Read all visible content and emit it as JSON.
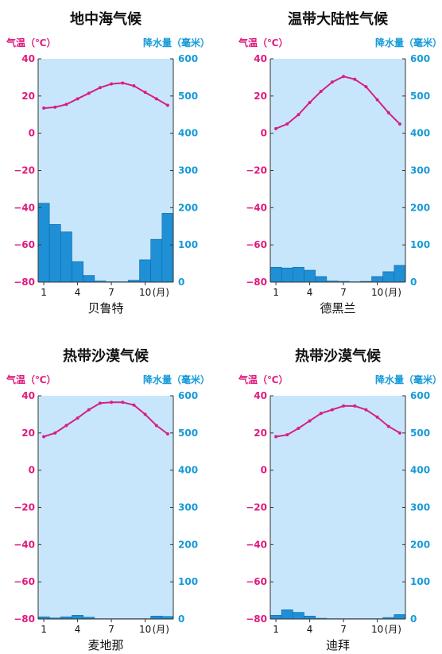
{
  "labels": {
    "temp_unit": "气温（℃）",
    "precip_unit": "降水量（毫米）",
    "month_suffix": "(月)"
  },
  "colors": {
    "temperature": "#d61f86",
    "precipitation": "#1f8fd6",
    "plot_background": "#c7e6fb"
  },
  "chart_data": [
    {
      "type": "bar",
      "title": "地中海气候",
      "city": "贝鲁特",
      "x": [
        1,
        2,
        3,
        4,
        5,
        6,
        7,
        8,
        9,
        10,
        11,
        12
      ],
      "x_tick_labels": [
        "1",
        "4",
        "7",
        "10"
      ],
      "temp_axis": {
        "ticks": [
          "40",
          "20",
          "0",
          "−20",
          "−40",
          "−60",
          "−80"
        ],
        "ylim": [
          -80,
          40
        ]
      },
      "precip_axis": {
        "ticks": [
          "600",
          "500",
          "400",
          "300",
          "200",
          "100",
          "0"
        ],
        "ylim": [
          0,
          600
        ]
      },
      "series": [
        {
          "name": "气温",
          "type": "line",
          "values": [
            13.5,
            14,
            15.5,
            18.5,
            21.5,
            24.5,
            26.5,
            27,
            25.5,
            22,
            18.5,
            15
          ]
        },
        {
          "name": "降水量",
          "type": "bar",
          "values": [
            212,
            155,
            135,
            55,
            18,
            3,
            1,
            1,
            5,
            60,
            115,
            185
          ]
        }
      ]
    },
    {
      "type": "bar",
      "title": "温带大陆性气候",
      "city": "德黑兰",
      "x": [
        1,
        2,
        3,
        4,
        5,
        6,
        7,
        8,
        9,
        10,
        11,
        12
      ],
      "x_tick_labels": [
        "1",
        "4",
        "7",
        "10"
      ],
      "temp_axis": {
        "ticks": [
          "40",
          "20",
          "0",
          "−20",
          "−40",
          "−60",
          "−80"
        ],
        "ylim": [
          -80,
          40
        ]
      },
      "precip_axis": {
        "ticks": [
          "600",
          "500",
          "400",
          "300",
          "200",
          "100",
          "0"
        ],
        "ylim": [
          0,
          600
        ]
      },
      "series": [
        {
          "name": "气温",
          "type": "line",
          "values": [
            2.5,
            5,
            10,
            16.5,
            22.5,
            27.5,
            30.5,
            29,
            25,
            18,
            11,
            5
          ]
        },
        {
          "name": "降水量",
          "type": "bar",
          "values": [
            40,
            38,
            40,
            32,
            15,
            3,
            2,
            1,
            2,
            15,
            28,
            45
          ]
        }
      ]
    },
    {
      "type": "bar",
      "title": "热带沙漠气候",
      "city": "麦地那",
      "x": [
        1,
        2,
        3,
        4,
        5,
        6,
        7,
        8,
        9,
        10,
        11,
        12
      ],
      "x_tick_labels": [
        "1",
        "4",
        "7",
        "10"
      ],
      "temp_axis": {
        "ticks": [
          "40",
          "20",
          "0",
          "−20",
          "−40",
          "−60",
          "−80"
        ],
        "ylim": [
          -80,
          40
        ]
      },
      "precip_axis": {
        "ticks": [
          "600",
          "500",
          "400",
          "300",
          "200",
          "100",
          "0"
        ],
        "ylim": [
          0,
          600
        ]
      },
      "series": [
        {
          "name": "气温",
          "type": "line",
          "values": [
            18,
            20,
            24,
            28,
            32.5,
            36,
            36.5,
            36.5,
            35,
            30,
            24,
            19.5
          ]
        },
        {
          "name": "降水量",
          "type": "bar",
          "values": [
            6,
            3,
            6,
            10,
            5,
            1,
            1,
            1,
            1,
            1,
            8,
            7
          ]
        }
      ]
    },
    {
      "type": "bar",
      "title": "热带沙漠气候",
      "city": "迪拜",
      "x": [
        1,
        2,
        3,
        4,
        5,
        6,
        7,
        8,
        9,
        10,
        11,
        12
      ],
      "x_tick_labels": [
        "1",
        "4",
        "7",
        "10"
      ],
      "temp_axis": {
        "ticks": [
          "40",
          "20",
          "0",
          "−20",
          "−40",
          "−60",
          "−80"
        ],
        "ylim": [
          -80,
          40
        ]
      },
      "precip_axis": {
        "ticks": [
          "600",
          "500",
          "400",
          "300",
          "200",
          "100",
          "0"
        ],
        "ylim": [
          0,
          600
        ]
      },
      "series": [
        {
          "name": "气温",
          "type": "line",
          "values": [
            18,
            19,
            22.5,
            26.5,
            30.5,
            32.5,
            34.5,
            34.5,
            32.5,
            28.5,
            23.5,
            20
          ]
        },
        {
          "name": "降水量",
          "type": "bar",
          "values": [
            10,
            25,
            18,
            8,
            2,
            1,
            1,
            1,
            1,
            1,
            4,
            12
          ]
        }
      ]
    }
  ]
}
